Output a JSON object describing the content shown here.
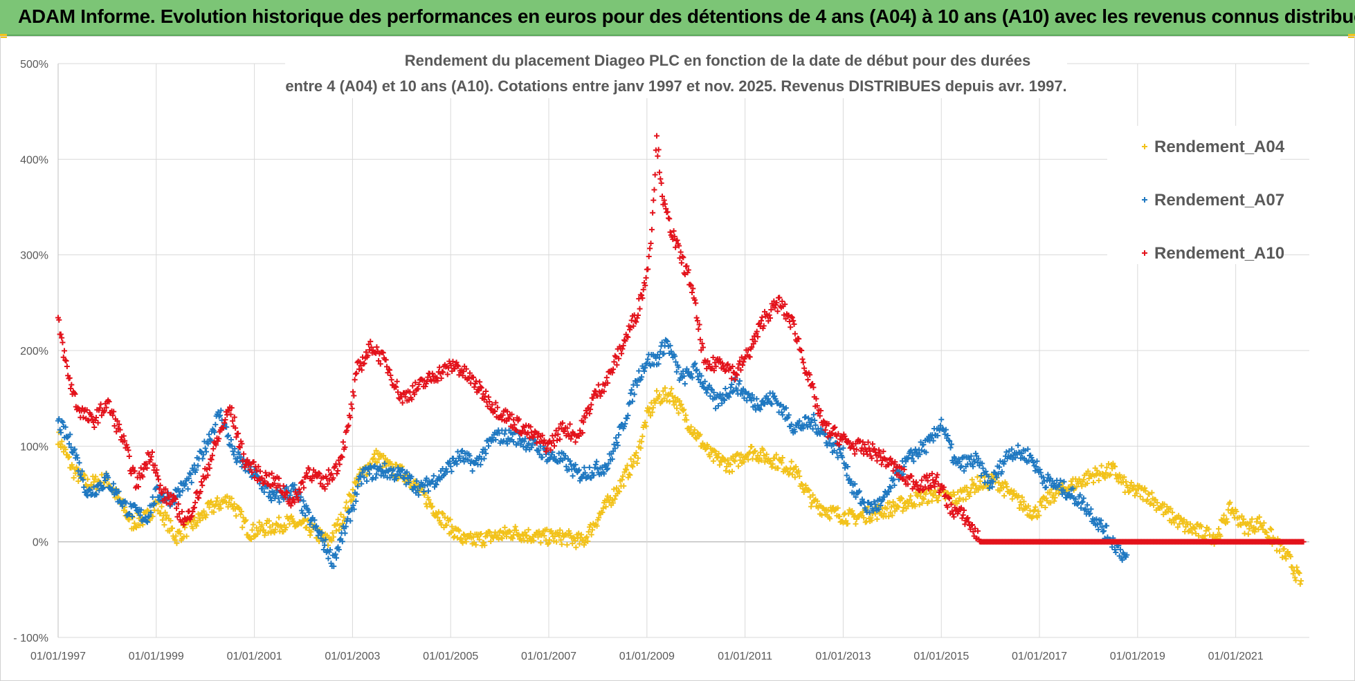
{
  "banner": {
    "title": "ADAM Informe. Evolution historique des performances en euros pour des détentions de 4 ans (A04) à 10 ans (A10) avec les revenus connus distribués"
  },
  "colors": {
    "banner_bg": "#7cc576",
    "A04": "#f2c21b",
    "A07": "#1f78c1",
    "A10": "#e3121b",
    "grid": "#d9d9d9"
  },
  "chart_data": {
    "type": "scatter",
    "title_line1": "Rendement du placement Diageo PLC en fonction de la date de début pour des durées",
    "title_line2": "entre 4 (A04) et 10 ans (A10).  Cotations entre janv 1997 et nov. 2025. Revenus DISTRIBUES depuis avr. 1997.",
    "ylim": [
      -100,
      500
    ],
    "yticks": [
      -100,
      0,
      100,
      200,
      300,
      400,
      500
    ],
    "ytick_labels": [
      "- 100%",
      "0%",
      "100%",
      "200%",
      "300%",
      "400%",
      "500%"
    ],
    "xlim": [
      1997.0,
      2022.5
    ],
    "xticks": [
      1997,
      1999,
      2001,
      2003,
      2005,
      2007,
      2009,
      2011,
      2013,
      2015,
      2017,
      2019,
      2021
    ],
    "xtick_labels": [
      "01/01/1997",
      "01/01/1999",
      "01/01/2001",
      "01/01/2003",
      "01/01/2005",
      "01/01/2007",
      "01/01/2009",
      "01/01/2011",
      "01/01/2013",
      "01/01/2015",
      "01/01/2017",
      "01/01/2019",
      "01/01/2021"
    ],
    "legend_position": "right",
    "series": [
      {
        "name": "Rendement_A04",
        "color": "#f2c21b",
        "x": [
          1997.0,
          1997.3,
          1997.6,
          1998.0,
          1998.5,
          1998.8,
          1999.0,
          1999.4,
          1999.8,
          2000.1,
          2000.5,
          2000.9,
          2001.3,
          2001.7,
          2002.1,
          2002.5,
          2002.8,
          2003.1,
          2003.5,
          2003.8,
          2004.1,
          2004.5,
          2004.9,
          2005.3,
          2005.8,
          2006.3,
          2006.8,
          2007.3,
          2007.7,
          2008.0,
          2008.4,
          2008.8,
          2009.0,
          2009.2,
          2009.5,
          2009.9,
          2010.3,
          2010.7,
          2011.1,
          2011.6,
          2012.0,
          2012.4,
          2012.8,
          2013.2,
          2013.6,
          2014.0,
          2014.5,
          2014.9,
          2015.3,
          2015.7,
          2016.1,
          2016.5,
          2016.9,
          2017.3,
          2017.7,
          2018.1,
          2018.5,
          2018.8,
          2019.2,
          2019.6,
          2020.0,
          2020.3,
          2020.6,
          2020.9,
          2021.2,
          2021.5,
          2021.8,
          2022.1,
          2022.35
        ],
        "y": [
          110,
          75,
          60,
          65,
          20,
          25,
          40,
          5,
          20,
          35,
          45,
          10,
          15,
          20,
          15,
          0,
          25,
          65,
          90,
          75,
          70,
          45,
          20,
          0,
          5,
          10,
          5,
          5,
          0,
          25,
          55,
          90,
          130,
          150,
          155,
          120,
          90,
          80,
          95,
          85,
          75,
          40,
          30,
          25,
          30,
          35,
          45,
          50,
          45,
          60,
          65,
          45,
          30,
          50,
          60,
          70,
          75,
          55,
          50,
          30,
          15,
          10,
          5,
          35,
          15,
          20,
          0,
          -20,
          -45
        ]
      },
      {
        "name": "Rendement_A07",
        "color": "#1f78c1",
        "x": [
          1997.0,
          1997.3,
          1997.6,
          1998.0,
          1998.4,
          1998.8,
          1999.0,
          1999.3,
          1999.7,
          2000.0,
          2000.3,
          2000.6,
          2001.0,
          2001.4,
          2001.8,
          2002.0,
          2002.3,
          2002.6,
          2002.9,
          2003.2,
          2003.6,
          2004.0,
          2004.4,
          2004.8,
          2005.2,
          2005.5,
          2005.9,
          2006.3,
          2006.7,
          2007.0,
          2007.3,
          2007.6,
          2007.9,
          2008.2,
          2008.5,
          2008.8,
          2009.0,
          2009.2,
          2009.4,
          2009.7,
          2010.0,
          2010.4,
          2010.8,
          2011.2,
          2011.6,
          2012.0,
          2012.4,
          2012.8,
          2013.0,
          2013.2,
          2013.5,
          2013.8,
          2014.1,
          2014.4,
          2014.8,
          2015.0,
          2015.3,
          2015.7,
          2016.0,
          2016.4,
          2016.8,
          2017.1,
          2017.5,
          2017.9,
          2018.2,
          2018.5,
          2018.8
        ],
        "y": [
          125,
          100,
          50,
          65,
          35,
          25,
          50,
          45,
          65,
          100,
          135,
          90,
          70,
          45,
          55,
          35,
          10,
          -20,
          20,
          70,
          75,
          70,
          55,
          70,
          90,
          80,
          110,
          110,
          100,
          90,
          85,
          70,
          75,
          80,
          120,
          170,
          190,
          190,
          210,
          170,
          180,
          145,
          165,
          145,
          150,
          120,
          125,
          100,
          90,
          55,
          35,
          40,
          70,
          90,
          105,
          125,
          80,
          85,
          60,
          95,
          90,
          65,
          55,
          40,
          20,
          0,
          -20
        ]
      },
      {
        "name": "Rendement_A10",
        "color": "#e3121b",
        "x": [
          1997.0,
          1997.2,
          1997.4,
          1997.7,
          1998.0,
          1998.3,
          1998.6,
          1998.9,
          1999.1,
          1999.3,
          1999.6,
          1999.9,
          2000.2,
          2000.5,
          2000.8,
          2001.1,
          2001.5,
          2001.8,
          2002.1,
          2002.4,
          2002.7,
          2002.9,
          2003.1,
          2003.4,
          2003.7,
          2004.0,
          2004.3,
          2004.7,
          2005.1,
          2005.5,
          2005.9,
          2006.3,
          2006.7,
          2007.0,
          2007.3,
          2007.6,
          2007.9,
          2008.2,
          2008.5,
          2008.8,
          2009.0,
          2009.1,
          2009.2,
          2009.35,
          2009.6,
          2009.9,
          2010.2,
          2010.5,
          2010.8,
          2011.1,
          2011.4,
          2011.7,
          2012.0,
          2012.3,
          2012.6,
          2012.9,
          2013.2,
          2013.6,
          2014.0,
          2014.3,
          2014.6,
          2014.9,
          2015.2,
          2015.5,
          2015.8,
          2016.0,
          2017.0,
          2018.0,
          2019.0,
          2020.0,
          2021.0,
          2022.0,
          2022.4
        ],
        "y": [
          230,
          175,
          140,
          125,
          145,
          110,
          60,
          95,
          50,
          45,
          20,
          55,
          100,
          140,
          85,
          70,
          60,
          40,
          75,
          60,
          80,
          115,
          180,
          205,
          185,
          150,
          160,
          175,
          185,
          165,
          140,
          125,
          110,
          100,
          120,
          110,
          150,
          170,
          205,
          240,
          280,
          330,
          420,
          350,
          310,
          270,
          180,
          190,
          175,
          200,
          235,
          250,
          225,
          170,
          120,
          110,
          100,
          95,
          80,
          65,
          60,
          65,
          35,
          25,
          0,
          0,
          0,
          0,
          0,
          0,
          0,
          0,
          0
        ]
      }
    ]
  }
}
